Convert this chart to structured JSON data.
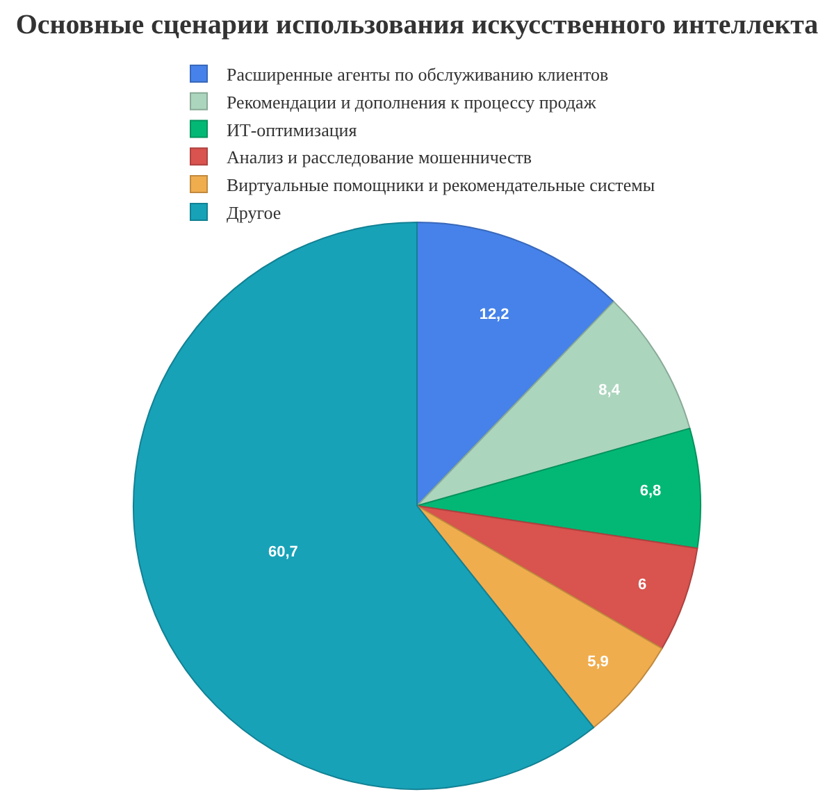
{
  "chart_data": {
    "type": "pie",
    "title": "Основные сценарии использования искусственного интеллекта",
    "categories": [
      "Расширенные агенты по обслуживанию клиентов",
      "Рекомендации и дополнения к процессу продаж",
      "ИТ-оптимизация",
      "Анализ и расследование мошенничеств",
      "Виртуальные помощники и рекомендательные системы",
      "Другое"
    ],
    "values": [
      12.2,
      8.4,
      6.8,
      6,
      5.9,
      60.7
    ],
    "value_labels": [
      "12,2",
      "8,4",
      "6,8",
      "6",
      "5,9",
      "60,7"
    ],
    "colors": [
      "#4682e9",
      "#acd5bd",
      "#03b875",
      "#d9534f",
      "#f0ad4e",
      "#17a2b8"
    ],
    "legend": "top"
  }
}
